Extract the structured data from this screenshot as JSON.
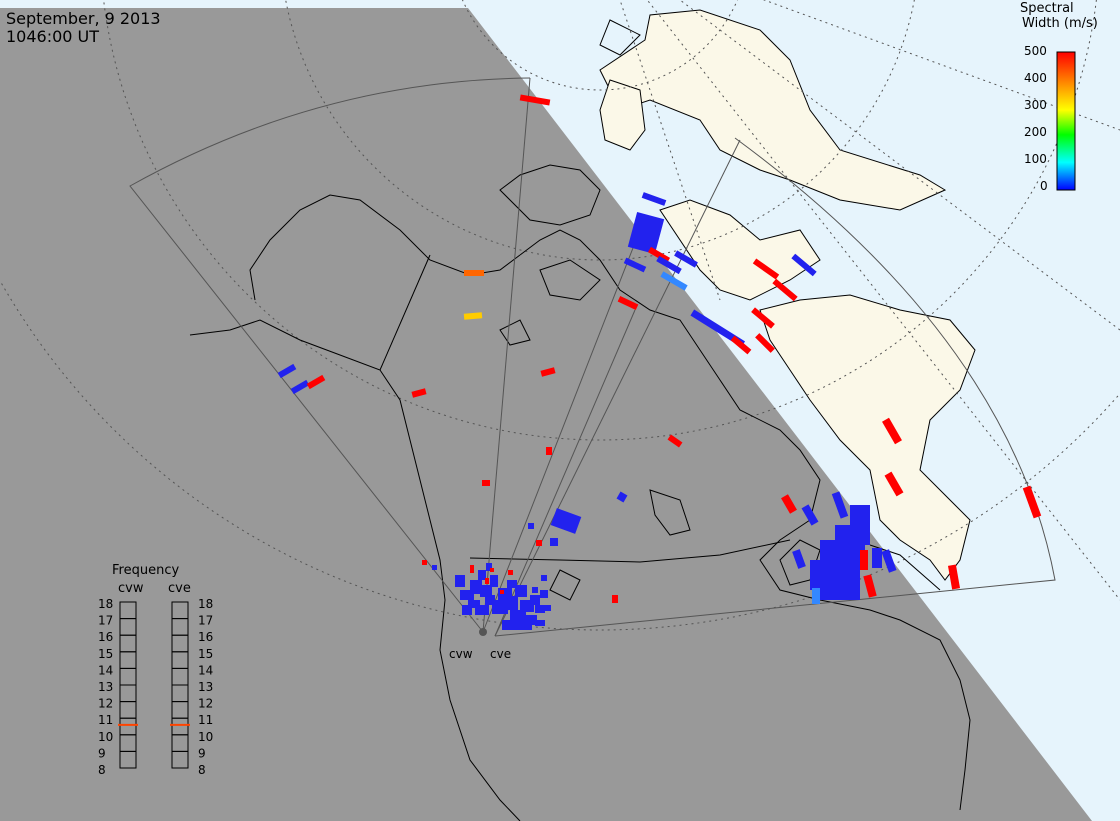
{
  "header": {
    "date": "September, 9 2013",
    "time": "1046:00 UT"
  },
  "colorbar": {
    "title_line1": "Spectral",
    "title_line2": "Width (m/s)",
    "ticks": [
      "500",
      "400",
      "300",
      "200",
      "100",
      "0"
    ],
    "gradient_colors": [
      "#ff0000",
      "#ff9900",
      "#ffff00",
      "#00ff00",
      "#00ffff",
      "#0000ff"
    ]
  },
  "frequency_panel": {
    "title": "Frequency",
    "cvw_label": "cvw",
    "cve_label": "cve",
    "scale": [
      "18",
      "17",
      "16",
      "15",
      "14",
      "13",
      "12",
      "11",
      "10",
      "9",
      "8"
    ],
    "cvw_value": 10.6,
    "cve_value": 10.6
  },
  "radars": {
    "cvw": "cvw",
    "cve": "cve"
  },
  "colors": {
    "night": "#999999",
    "day_sea": "#e6f4fc",
    "day_land": "#fbf8e8",
    "high_width": "#ff0000",
    "low_width": "#2222ee",
    "mid_width": "#ff6600",
    "yellow": "#ffcc00",
    "light_blue": "#3388ff"
  }
}
